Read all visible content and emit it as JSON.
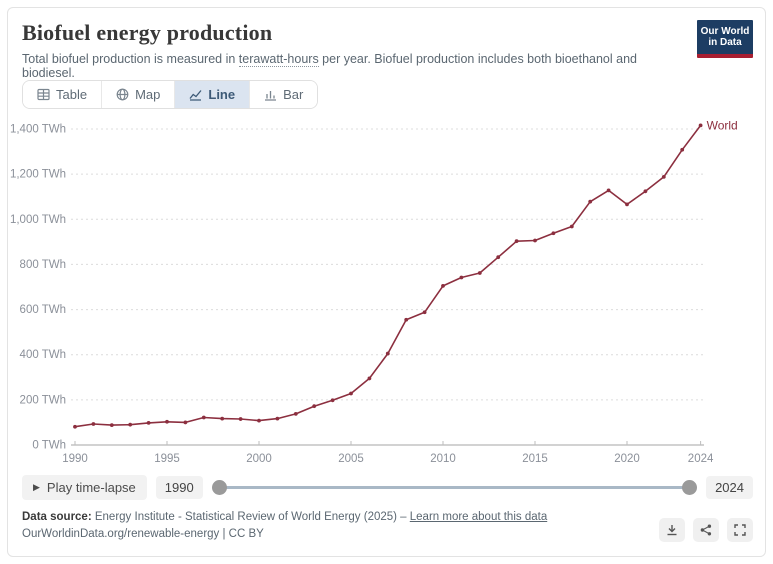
{
  "header": {
    "title": "Biofuel energy production",
    "subtitle_pre": "Total biofuel production is measured in ",
    "subtitle_term": "terawatt-hours",
    "subtitle_post": " per year. Biofuel production includes both bioethanol and biodiesel.",
    "logo_line1": "Our World",
    "logo_line2": "in Data"
  },
  "tabs": [
    {
      "label": "Table",
      "active": false
    },
    {
      "label": "Map",
      "active": false
    },
    {
      "label": "Line",
      "active": true
    },
    {
      "label": "Bar",
      "active": false
    }
  ],
  "chart_data": {
    "type": "line",
    "title": "Biofuel energy production",
    "unit": "TWh",
    "x": [
      1990,
      1991,
      1992,
      1993,
      1994,
      1995,
      1996,
      1997,
      1998,
      1999,
      2000,
      2001,
      2002,
      2003,
      2004,
      2005,
      2006,
      2007,
      2008,
      2009,
      2010,
      2011,
      2012,
      2013,
      2014,
      2015,
      2016,
      2017,
      2018,
      2019,
      2020,
      2021,
      2022,
      2023,
      2024
    ],
    "series": [
      {
        "name": "World",
        "color": "#8c2f3f",
        "values": [
          81,
          93,
          88,
          90,
          98,
          103,
          100,
          122,
          117,
          115,
          108,
          117,
          138,
          172,
          198,
          228,
          295,
          405,
          555,
          588,
          705,
          742,
          762,
          832,
          903,
          906,
          938,
          968,
          1078,
          1128,
          1066,
          1124,
          1188,
          1308,
          1416
        ]
      }
    ],
    "yticks": [
      0,
      200,
      400,
      600,
      800,
      1000,
      1200,
      1400
    ],
    "ytick_suffix": " TWh",
    "xticks": [
      1990,
      1995,
      2000,
      2005,
      2010,
      2015,
      2020,
      2024
    ],
    "ylim": [
      0,
      1480
    ],
    "xlim": [
      1990,
      2024
    ],
    "grid": "dashed-horizontal",
    "legend": "end-of-line-label"
  },
  "timeline": {
    "play_label": "Play time-lapse",
    "play_icon": "▶",
    "start_year": "1990",
    "end_year": "2024"
  },
  "footer": {
    "source_label": "Data source:",
    "source_text": " Energy Institute - Statistical Review of World Energy (2025) – ",
    "source_link": "Learn more about this data",
    "credit_line": "OurWorldinData.org/renewable-energy | CC BY"
  },
  "colors": {
    "line": "#8c2f3f",
    "logo_bg": "#1d3d63",
    "logo_red": "#a81e31",
    "active_tab_bg": "#dbe4f0",
    "active_tab_text": "#3d5a77",
    "grid": "#dcdcdc",
    "axis": "#a5a5a5",
    "tick_label": "#8b9099",
    "slider_track": "#a9b8c6",
    "slider_handle": "#9a9a9a"
  }
}
